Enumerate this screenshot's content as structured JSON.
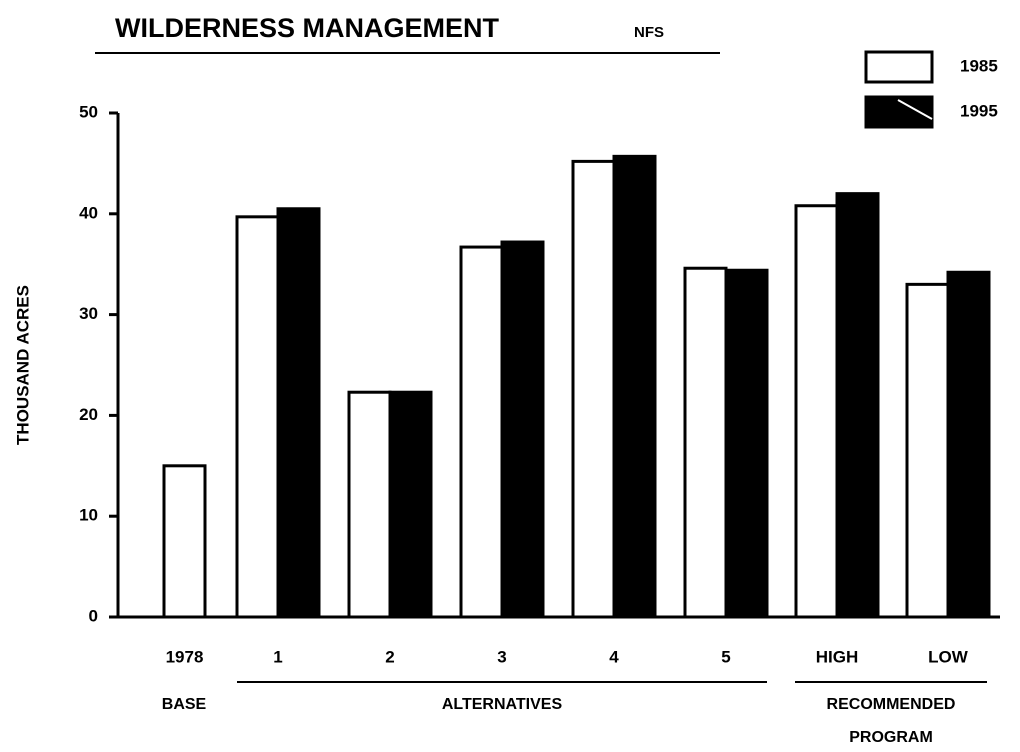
{
  "chart_data": {
    "type": "bar",
    "title": "WILDERNESS MANAGEMENT",
    "subtitle": "NFS",
    "ylabel": "THOUSAND ACRES",
    "categories": [
      "1978",
      "1",
      "2",
      "3",
      "4",
      "5",
      "HIGH",
      "LOW"
    ],
    "groups": [
      [
        "BASE"
      ],
      [
        "ALTERNATIVES"
      ],
      [
        "RECOMMENDED",
        "PROGRAM"
      ]
    ],
    "series": [
      {
        "name": "1985",
        "color": "#ffffff",
        "values": [
          15,
          39.7,
          22.3,
          36.7,
          45.2,
          34.6,
          40.8,
          33
        ]
      },
      {
        "name": "1995",
        "color": "#000000",
        "values": [
          null,
          40.5,
          22.3,
          37.2,
          45.7,
          34.4,
          42,
          34.2
        ]
      }
    ],
    "ylim": [
      0,
      50
    ],
    "yticks": [
      0,
      10,
      20,
      30,
      40,
      50
    ],
    "legend": "upper right"
  }
}
